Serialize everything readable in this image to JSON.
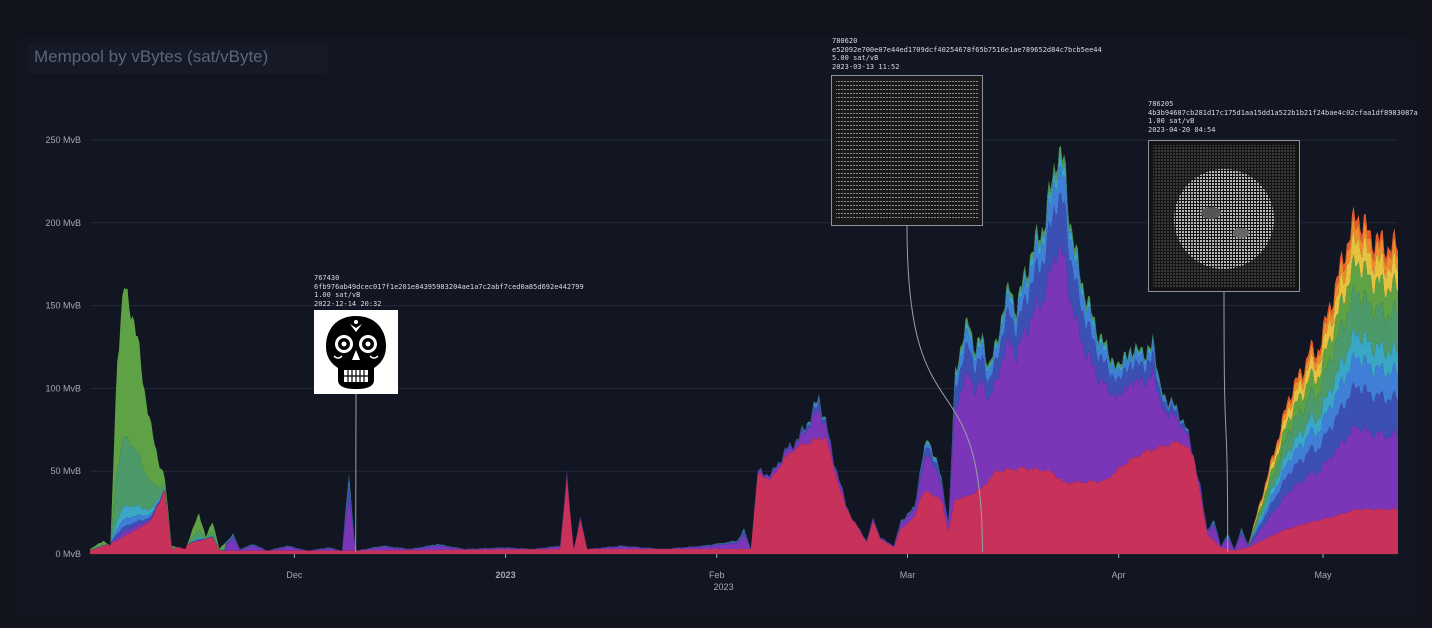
{
  "title": "Mempool by vBytes (sat/vByte)",
  "colors": {
    "background": "#11141d",
    "grid": "#23283a",
    "tick_text": "#a4a8b4",
    "connector": "#9a9ea8"
  },
  "chart_data": {
    "type": "area",
    "stacked": true,
    "x_axis": {
      "start": "2022-11-01",
      "end": "2023-05-12",
      "tick_dates": [
        "2022-12-01",
        "2023-01-01",
        "2023-02-01",
        "2023-03-01",
        "2023-04-01",
        "2023-05-01"
      ],
      "tick_labels": [
        "Dec",
        "2023",
        "Feb",
        "Mar",
        "Apr",
        "May"
      ],
      "year_label": "2023"
    },
    "y_axis": {
      "unit": "MvB",
      "ylim": [
        0,
        270
      ],
      "ticks": [
        0,
        50,
        100,
        150,
        200,
        250
      ],
      "tick_labels": [
        "0 MvB",
        "50 MvB",
        "100 MvB",
        "150 MvB",
        "200 MvB",
        "250 MvB"
      ]
    },
    "grid": true,
    "series_colors": [
      "#c8325a",
      "#7b35b8",
      "#3c4fb2",
      "#3f7fd8",
      "#3aa7c7",
      "#4c9a6a",
      "#5ea245",
      "#e6c23e",
      "#ee8b2d",
      "#e85a2a"
    ],
    "totals": [
      {
        "date": "2022-11-01",
        "value": 3
      },
      {
        "date": "2022-11-03",
        "value": 8
      },
      {
        "date": "2022-11-04",
        "value": 5
      },
      {
        "date": "2022-11-05",
        "value": 120
      },
      {
        "date": "2022-11-06",
        "value": 160
      },
      {
        "date": "2022-11-07",
        "value": 150
      },
      {
        "date": "2022-11-08",
        "value": 128
      },
      {
        "date": "2022-11-09",
        "value": 100
      },
      {
        "date": "2022-11-10",
        "value": 75
      },
      {
        "date": "2022-11-11",
        "value": 58
      },
      {
        "date": "2022-11-12",
        "value": 45
      },
      {
        "date": "2022-11-13",
        "value": 5
      },
      {
        "date": "2022-11-15",
        "value": 3
      },
      {
        "date": "2022-11-17",
        "value": 25
      },
      {
        "date": "2022-11-18",
        "value": 10
      },
      {
        "date": "2022-11-19",
        "value": 20
      },
      {
        "date": "2022-11-20",
        "value": 3
      },
      {
        "date": "2022-11-22",
        "value": 12
      },
      {
        "date": "2022-11-23",
        "value": 3
      },
      {
        "date": "2022-11-25",
        "value": 6
      },
      {
        "date": "2022-11-27",
        "value": 2
      },
      {
        "date": "2022-11-30",
        "value": 5
      },
      {
        "date": "2022-12-03",
        "value": 2
      },
      {
        "date": "2022-12-06",
        "value": 4
      },
      {
        "date": "2022-12-08",
        "value": 2
      },
      {
        "date": "2022-12-09",
        "value": 48
      },
      {
        "date": "2022-12-10",
        "value": 2
      },
      {
        "date": "2022-12-14",
        "value": 5
      },
      {
        "date": "2022-12-18",
        "value": 3
      },
      {
        "date": "2022-12-22",
        "value": 6
      },
      {
        "date": "2022-12-26",
        "value": 3
      },
      {
        "date": "2023-01-01",
        "value": 4
      },
      {
        "date": "2023-01-05",
        "value": 3
      },
      {
        "date": "2023-01-09",
        "value": 5
      },
      {
        "date": "2023-01-10",
        "value": 48
      },
      {
        "date": "2023-01-11",
        "value": 3
      },
      {
        "date": "2023-01-12",
        "value": 22
      },
      {
        "date": "2023-01-13",
        "value": 3
      },
      {
        "date": "2023-01-18",
        "value": 5
      },
      {
        "date": "2023-01-24",
        "value": 3
      },
      {
        "date": "2023-01-30",
        "value": 5
      },
      {
        "date": "2023-02-04",
        "value": 8
      },
      {
        "date": "2023-02-05",
        "value": 15
      },
      {
        "date": "2023-02-06",
        "value": 3
      },
      {
        "date": "2023-02-07",
        "value": 50
      },
      {
        "date": "2023-02-09",
        "value": 48
      },
      {
        "date": "2023-02-11",
        "value": 62
      },
      {
        "date": "2023-02-13",
        "value": 70
      },
      {
        "date": "2023-02-15",
        "value": 85
      },
      {
        "date": "2023-02-16",
        "value": 95
      },
      {
        "date": "2023-02-17",
        "value": 80
      },
      {
        "date": "2023-02-18",
        "value": 60
      },
      {
        "date": "2023-02-19",
        "value": 45
      },
      {
        "date": "2023-02-20",
        "value": 30
      },
      {
        "date": "2023-02-21",
        "value": 20
      },
      {
        "date": "2023-02-22",
        "value": 15
      },
      {
        "date": "2023-02-23",
        "value": 8
      },
      {
        "date": "2023-02-24",
        "value": 22
      },
      {
        "date": "2023-02-25",
        "value": 10
      },
      {
        "date": "2023-02-27",
        "value": 5
      },
      {
        "date": "2023-02-28",
        "value": 20
      },
      {
        "date": "2023-03-02",
        "value": 28
      },
      {
        "date": "2023-03-03",
        "value": 55
      },
      {
        "date": "2023-03-04",
        "value": 70
      },
      {
        "date": "2023-03-05",
        "value": 60
      },
      {
        "date": "2023-03-06",
        "value": 45
      },
      {
        "date": "2023-03-07",
        "value": 20
      },
      {
        "date": "2023-03-08",
        "value": 110
      },
      {
        "date": "2023-03-09",
        "value": 130
      },
      {
        "date": "2023-03-10",
        "value": 140
      },
      {
        "date": "2023-03-11",
        "value": 125
      },
      {
        "date": "2023-03-12",
        "value": 130
      },
      {
        "date": "2023-03-13",
        "value": 115
      },
      {
        "date": "2023-03-14",
        "value": 125
      },
      {
        "date": "2023-03-15",
        "value": 150
      },
      {
        "date": "2023-03-16",
        "value": 160
      },
      {
        "date": "2023-03-17",
        "value": 150
      },
      {
        "date": "2023-03-18",
        "value": 165
      },
      {
        "date": "2023-03-19",
        "value": 180
      },
      {
        "date": "2023-03-20",
        "value": 190
      },
      {
        "date": "2023-03-21",
        "value": 200
      },
      {
        "date": "2023-03-22",
        "value": 220
      },
      {
        "date": "2023-03-23",
        "value": 245
      },
      {
        "date": "2023-03-24",
        "value": 235
      },
      {
        "date": "2023-03-25",
        "value": 200
      },
      {
        "date": "2023-03-26",
        "value": 175
      },
      {
        "date": "2023-03-27",
        "value": 160
      },
      {
        "date": "2023-03-28",
        "value": 145
      },
      {
        "date": "2023-03-29",
        "value": 135
      },
      {
        "date": "2023-03-30",
        "value": 125
      },
      {
        "date": "2023-03-31",
        "value": 120
      },
      {
        "date": "2023-04-01",
        "value": 110
      },
      {
        "date": "2023-04-02",
        "value": 125
      },
      {
        "date": "2023-04-03",
        "value": 118
      },
      {
        "date": "2023-04-04",
        "value": 130
      },
      {
        "date": "2023-04-05",
        "value": 115
      },
      {
        "date": "2023-04-06",
        "value": 135
      },
      {
        "date": "2023-04-07",
        "value": 100
      },
      {
        "date": "2023-04-08",
        "value": 95
      },
      {
        "date": "2023-04-09",
        "value": 90
      },
      {
        "date": "2023-04-10",
        "value": 85
      },
      {
        "date": "2023-04-11",
        "value": 75
      },
      {
        "date": "2023-04-12",
        "value": 60
      },
      {
        "date": "2023-04-13",
        "value": 40
      },
      {
        "date": "2023-04-14",
        "value": 15
      },
      {
        "date": "2023-04-15",
        "value": 20
      },
      {
        "date": "2023-04-16",
        "value": 5
      },
      {
        "date": "2023-04-17",
        "value": 12
      },
      {
        "date": "2023-04-18",
        "value": 3
      },
      {
        "date": "2023-04-19",
        "value": 15
      },
      {
        "date": "2023-04-20",
        "value": 6
      },
      {
        "date": "2023-04-21",
        "value": 20
      },
      {
        "date": "2023-04-22",
        "value": 35
      },
      {
        "date": "2023-04-23",
        "value": 50
      },
      {
        "date": "2023-04-24",
        "value": 65
      },
      {
        "date": "2023-04-25",
        "value": 80
      },
      {
        "date": "2023-04-26",
        "value": 95
      },
      {
        "date": "2023-04-27",
        "value": 105
      },
      {
        "date": "2023-04-28",
        "value": 110
      },
      {
        "date": "2023-04-29",
        "value": 125
      },
      {
        "date": "2023-04-30",
        "value": 120
      },
      {
        "date": "2023-05-01",
        "value": 135
      },
      {
        "date": "2023-05-02",
        "value": 150
      },
      {
        "date": "2023-05-03",
        "value": 165
      },
      {
        "date": "2023-05-04",
        "value": 180
      },
      {
        "date": "2023-05-05",
        "value": 195
      },
      {
        "date": "2023-05-06",
        "value": 205
      },
      {
        "date": "2023-05-07",
        "value": 200
      },
      {
        "date": "2023-05-08",
        "value": 190
      },
      {
        "date": "2023-05-09",
        "value": 192
      },
      {
        "date": "2023-05-10",
        "value": 185
      },
      {
        "date": "2023-05-11",
        "value": 188
      },
      {
        "date": "2023-05-12",
        "value": 185
      }
    ],
    "bottom_layer": [
      {
        "date": "2022-11-01",
        "value": 2
      },
      {
        "date": "2022-11-05",
        "value": 8
      },
      {
        "date": "2022-11-10",
        "value": 20
      },
      {
        "date": "2022-11-11",
        "value": 30
      },
      {
        "date": "2022-11-12",
        "value": 38
      },
      {
        "date": "2022-11-13",
        "value": 3
      },
      {
        "date": "2022-11-17",
        "value": 8
      },
      {
        "date": "2022-11-19",
        "value": 10
      },
      {
        "date": "2022-11-20",
        "value": 2
      },
      {
        "date": "2022-12-09",
        "value": 2
      },
      {
        "date": "2023-01-09",
        "value": 3
      },
      {
        "date": "2023-01-10",
        "value": 45
      },
      {
        "date": "2023-01-11",
        "value": 3
      },
      {
        "date": "2023-01-12",
        "value": 20
      },
      {
        "date": "2023-01-13",
        "value": 3
      },
      {
        "date": "2023-02-06",
        "value": 3
      },
      {
        "date": "2023-02-07",
        "value": 48
      },
      {
        "date": "2023-02-09",
        "value": 45
      },
      {
        "date": "2023-02-11",
        "value": 58
      },
      {
        "date": "2023-02-13",
        "value": 65
      },
      {
        "date": "2023-02-15",
        "value": 68
      },
      {
        "date": "2023-02-16",
        "value": 70
      },
      {
        "date": "2023-02-17",
        "value": 70
      },
      {
        "date": "2023-02-18",
        "value": 55
      },
      {
        "date": "2023-02-19",
        "value": 40
      },
      {
        "date": "2023-02-20",
        "value": 28
      },
      {
        "date": "2023-02-22",
        "value": 14
      },
      {
        "date": "2023-02-23",
        "value": 7
      },
      {
        "date": "2023-02-24",
        "value": 20
      },
      {
        "date": "2023-02-25",
        "value": 9
      },
      {
        "date": "2023-02-27",
        "value": 4
      },
      {
        "date": "2023-02-28",
        "value": 15
      },
      {
        "date": "2023-03-02",
        "value": 22
      },
      {
        "date": "2023-03-03",
        "value": 35
      },
      {
        "date": "2023-03-04",
        "value": 38
      },
      {
        "date": "2023-03-05",
        "value": 35
      },
      {
        "date": "2023-03-06",
        "value": 32
      },
      {
        "date": "2023-03-07",
        "value": 14
      },
      {
        "date": "2023-03-08",
        "value": 33
      },
      {
        "date": "2023-03-10",
        "value": 35
      },
      {
        "date": "2023-03-12",
        "value": 40
      },
      {
        "date": "2023-03-14",
        "value": 50
      },
      {
        "date": "2023-03-18",
        "value": 52
      },
      {
        "date": "2023-03-22",
        "value": 50
      },
      {
        "date": "2023-03-24",
        "value": 43
      },
      {
        "date": "2023-03-30",
        "value": 44
      },
      {
        "date": "2023-04-02",
        "value": 55
      },
      {
        "date": "2023-04-05",
        "value": 62
      },
      {
        "date": "2023-04-10",
        "value": 68
      },
      {
        "date": "2023-04-12",
        "value": 60
      },
      {
        "date": "2023-04-13",
        "value": 35
      },
      {
        "date": "2023-04-14",
        "value": 12
      },
      {
        "date": "2023-04-16",
        "value": 4
      },
      {
        "date": "2023-04-18",
        "value": 2
      },
      {
        "date": "2023-04-20",
        "value": 4
      },
      {
        "date": "2023-04-22",
        "value": 8
      },
      {
        "date": "2023-04-25",
        "value": 14
      },
      {
        "date": "2023-04-28",
        "value": 18
      },
      {
        "date": "2023-05-02",
        "value": 22
      },
      {
        "date": "2023-05-06",
        "value": 27
      },
      {
        "date": "2023-05-12",
        "value": 27
      }
    ],
    "annotations": [
      {
        "date": "2022-12-10",
        "block": "767430",
        "txid": "6fb976ab49dcec017f1e201e84395983204ae1a7c2abf7ced0a85d692e442799",
        "fee": "1.00 sat/vB",
        "time": "2022-12-14 20:32",
        "thumbnail": "skull-icon"
      },
      {
        "date": "2023-03-12",
        "block": "780620",
        "txid": "e52092e700e07e44ed1709dcf40254678f65b7516e1ae789652d84c7bcb5ee44",
        "fee": "5.00 sat/vB",
        "time": "2023-03-13 11:52",
        "thumbnail": "text-art-icon"
      },
      {
        "date": "2023-04-17",
        "block": "786205",
        "txid": "4b3b94687cb281d17c175d1aa15dd1a522b1b21f24bae4c02cfaa1df8983087a",
        "fee": "1.00 sat/vB",
        "time": "2023-04-20 04:54",
        "thumbnail": "moon-icon"
      }
    ]
  }
}
